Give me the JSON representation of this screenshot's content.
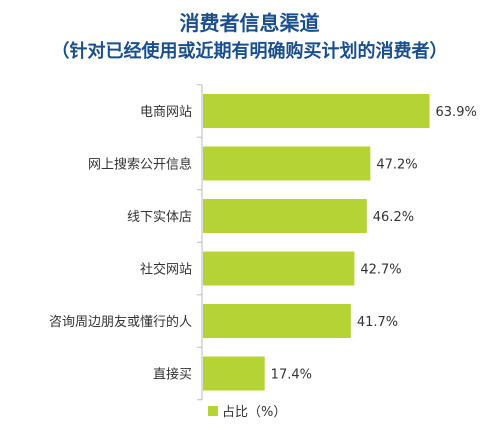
{
  "chart_data": {
    "type": "bar",
    "orientation": "horizontal",
    "title": "消费者信息渠道",
    "subtitle": "（针对已经使用或近期有明确购买计划的消费者）",
    "categories": [
      "电商网站",
      "网上搜索公开信息",
      "线下实体店",
      "社交网站",
      "咨询周边朋友或懂行的人",
      "直接买"
    ],
    "series": [
      {
        "name": "占比（%）",
        "values": [
          63.9,
          47.2,
          46.2,
          42.7,
          41.7,
          17.4
        ]
      }
    ],
    "value_labels": [
      "63.9%",
      "47.2%",
      "46.2%",
      "42.7%",
      "41.7%",
      "17.4%"
    ],
    "bar_color": "#b5d334",
    "axis_color": "#bbbbbb",
    "xlim": [
      0,
      70
    ],
    "grid": false,
    "legend_position": "bottom"
  }
}
